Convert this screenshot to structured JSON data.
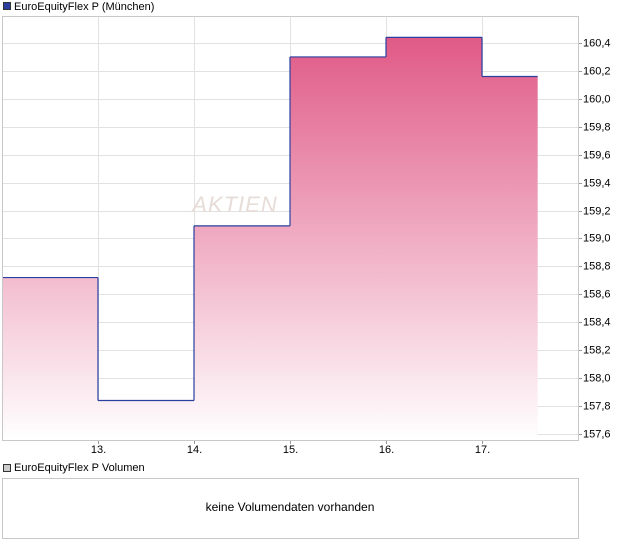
{
  "chart_data": {
    "type": "step",
    "series": [
      {
        "name": "EuroEquityFlex P (München)",
        "color": "#2a3f9e",
        "x": [
          12,
          13,
          14,
          15,
          16,
          17
        ],
        "x_end": 17.58,
        "values": [
          158.72,
          157.84,
          159.09,
          160.3,
          160.44,
          160.16
        ]
      }
    ],
    "fill_color": "#e05a87",
    "watermark": "AKTIEN",
    "xlim": [
      12,
      18
    ],
    "xticks": [
      {
        "value": 13,
        "label": "13."
      },
      {
        "value": 14,
        "label": "14."
      },
      {
        "value": 15,
        "label": "15."
      },
      {
        "value": 16,
        "label": "16."
      },
      {
        "value": 17,
        "label": "17."
      }
    ],
    "ylim": [
      157.557,
      160.593
    ],
    "yticks": [
      {
        "value": 157.6,
        "label": "157,6"
      },
      {
        "value": 157.8,
        "label": "157,8"
      },
      {
        "value": 158.0,
        "label": "158,0"
      },
      {
        "value": 158.2,
        "label": "158,2"
      },
      {
        "value": 158.4,
        "label": "158,4"
      },
      {
        "value": 158.6,
        "label": "158,6"
      },
      {
        "value": 158.8,
        "label": "158,8"
      },
      {
        "value": 159.0,
        "label": "159,0"
      },
      {
        "value": 159.2,
        "label": "159,2"
      },
      {
        "value": 159.4,
        "label": "159,4"
      },
      {
        "value": 159.6,
        "label": "159,6"
      },
      {
        "value": 159.8,
        "label": "159,8"
      },
      {
        "value": 160.0,
        "label": "160,0"
      },
      {
        "value": 160.2,
        "label": "160,2"
      },
      {
        "value": 160.4,
        "label": "160,4"
      }
    ],
    "grid": true
  },
  "volume_panel": {
    "legend": "EuroEquityFlex P Volumen",
    "message": "keine Volumendaten vorhanden"
  }
}
